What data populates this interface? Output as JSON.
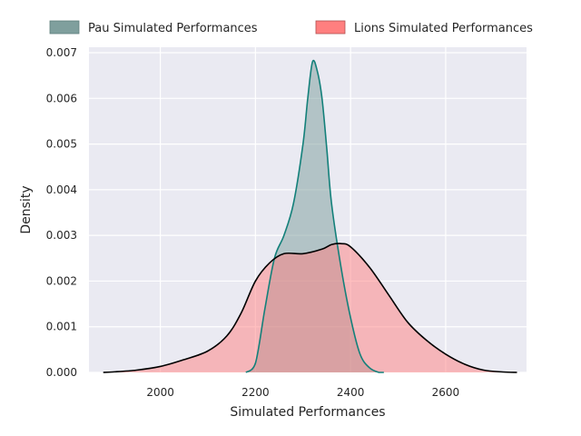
{
  "chart_data": {
    "type": "area",
    "xlabel": "Simulated Performances",
    "ylabel": "Density",
    "xlim": [
      1850,
      2770
    ],
    "ylim": [
      0,
      0.00712
    ],
    "xticks": [
      2000,
      2200,
      2400,
      2600
    ],
    "xtick_labels": [
      "2000",
      "2200",
      "2400",
      "2600"
    ],
    "yticks": [
      0,
      0.001,
      0.002,
      0.003,
      0.004,
      0.005,
      0.006,
      0.007
    ],
    "ytick_labels": [
      "0.000",
      "0.001",
      "0.002",
      "0.003",
      "0.004",
      "0.005",
      "0.006",
      "0.007"
    ],
    "grid": true,
    "legend_position": "top",
    "background": "#eaeaf2",
    "series": [
      {
        "name": "Pau Simulated Performances",
        "fill": "#7f9f9d",
        "line": "#13807a",
        "x": [
          2180,
          2200,
          2220,
          2240,
          2260,
          2280,
          2300,
          2310,
          2320,
          2330,
          2340,
          2350,
          2360,
          2380,
          2400,
          2420,
          2440,
          2460,
          2470
        ],
        "y": [
          0.0,
          0.0002,
          0.0014,
          0.0025,
          0.003,
          0.0037,
          0.005,
          0.006,
          0.0068,
          0.0066,
          0.006,
          0.0049,
          0.0037,
          0.0023,
          0.0012,
          0.0004,
          0.0001,
          0.0,
          0.0
        ]
      },
      {
        "name": "Lions Simulated Performances",
        "fill": "#ff7f7f",
        "line": "#000000",
        "x": [
          1880,
          1900,
          1950,
          2000,
          2050,
          2100,
          2140,
          2170,
          2200,
          2230,
          2260,
          2300,
          2340,
          2360,
          2380,
          2400,
          2440,
          2480,
          2520,
          2560,
          2600,
          2640,
          2680,
          2720,
          2750
        ],
        "y": [
          0.0,
          1e-05,
          5e-05,
          0.00013,
          0.00028,
          0.00047,
          0.0008,
          0.0013,
          0.002,
          0.0024,
          0.0026,
          0.0026,
          0.0027,
          0.0028,
          0.00282,
          0.00275,
          0.0023,
          0.0017,
          0.0011,
          0.0007,
          0.0004,
          0.00018,
          5e-05,
          1e-05,
          0.0
        ]
      }
    ]
  }
}
